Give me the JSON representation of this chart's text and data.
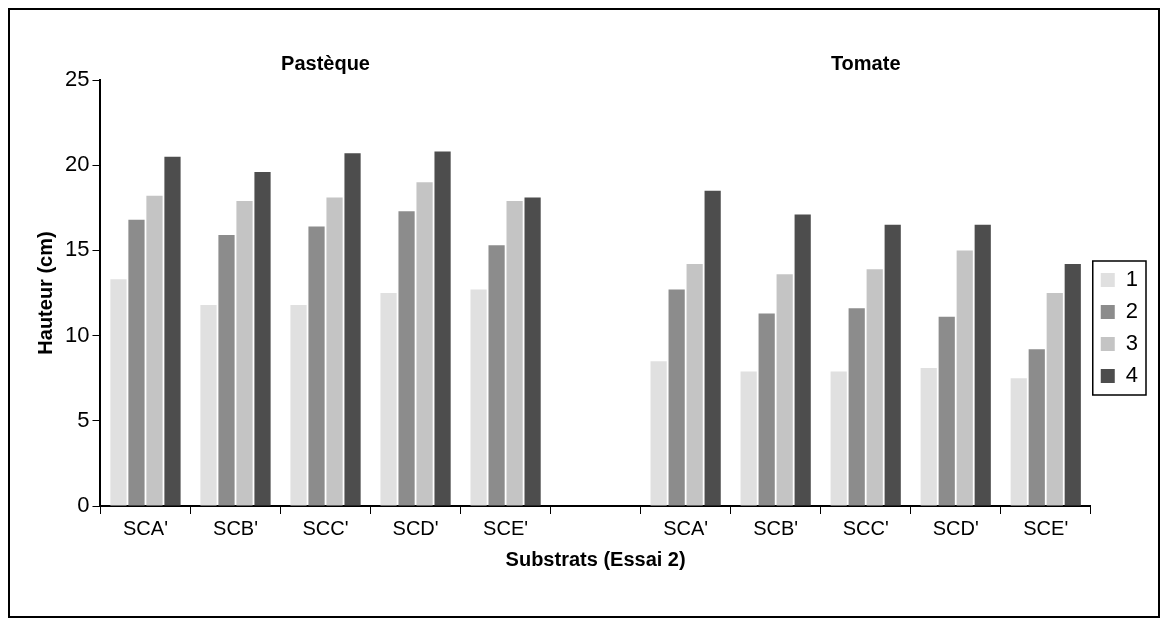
{
  "chart_data": {
    "type": "bar",
    "xlabel": "Substrats (Essai 2)",
    "ylabel": "Hauteur (cm)",
    "annotations": [
      "Pastèque",
      "Tomate"
    ],
    "categories": [
      "SCA'",
      "SCB'",
      "SCC'",
      "SCD'",
      "SCE'",
      null,
      "SCA'",
      "SCB'",
      "SCC'",
      "SCD'",
      "SCE'"
    ],
    "series": [
      {
        "name": "1",
        "color": "#e0e0e0",
        "values": [
          13.3,
          11.8,
          11.8,
          12.5,
          12.7,
          null,
          8.5,
          7.9,
          7.9,
          8.1,
          7.5
        ]
      },
      {
        "name": "2",
        "color": "#8c8c8c",
        "values": [
          16.8,
          15.9,
          16.4,
          17.3,
          15.3,
          null,
          12.7,
          11.3,
          11.6,
          11.1,
          9.2
        ]
      },
      {
        "name": "3",
        "color": "#c4c4c4",
        "values": [
          18.2,
          17.9,
          18.1,
          19.0,
          17.9,
          null,
          14.2,
          13.6,
          13.9,
          15.0,
          12.5
        ]
      },
      {
        "name": "4",
        "color": "#4d4d4d",
        "values": [
          20.5,
          19.6,
          20.7,
          20.8,
          18.1,
          null,
          18.5,
          17.1,
          16.5,
          16.5,
          14.2
        ]
      }
    ],
    "ylim": [
      0,
      25
    ],
    "yticks": [
      0,
      5,
      10,
      15,
      20,
      25
    ],
    "grid": false,
    "legend": "right"
  }
}
